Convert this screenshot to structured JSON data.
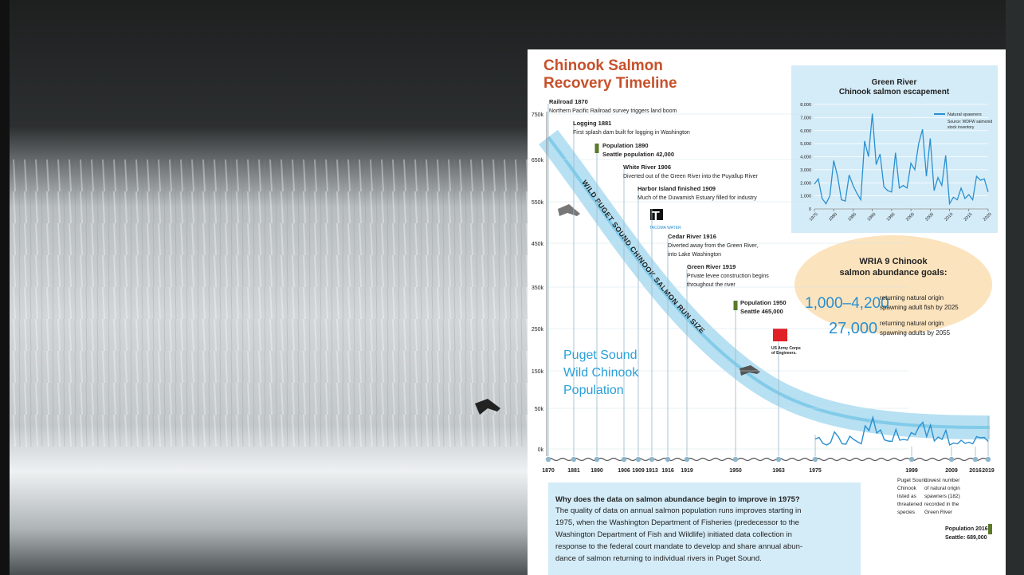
{
  "title_lines": [
    "Chinook Salmon",
    "Recovery Timeline"
  ],
  "run_axis": [
    "750k",
    "650k",
    "550k",
    "450k",
    "350k",
    "250k",
    "150k",
    "50k",
    "0k"
  ],
  "events": [
    {
      "lines": [
        "Railroad 1870",
        "Northern Pacific Railroad survey triggers land boom"
      ]
    },
    {
      "lines": [
        "Logging 1881",
        "First splash dam built for logging in Washington"
      ]
    },
    {
      "lines": [
        "Population 1890",
        "Seattle population 42,000"
      ]
    },
    {
      "lines": [
        "White River 1906",
        "Diverted out of the Green River into the Puyallup River"
      ]
    },
    {
      "lines": [
        "Harbor Island finished 1909",
        "Much of the Duwamish Estuary filled for industry"
      ]
    },
    {
      "lines": [
        "Cedar River 1916",
        "Diverted away from the Green River,",
        "into Lake Washington"
      ]
    },
    {
      "lines": [
        "Green River 1919",
        "Private levee construction begins",
        "throughout the river"
      ]
    },
    {
      "lines": [
        "Population 1950",
        "Seattle 465,000"
      ]
    }
  ],
  "timeline_years": [
    "1870",
    "1881",
    "1890",
    "1906",
    "1909",
    "1913",
    "1916",
    "1919",
    "1950",
    "1963",
    "1975",
    "1999",
    "2009",
    "2016",
    "2019"
  ],
  "band_label": "WILD PUGET SOUND CHINOOK SALMON RUN SIZE",
  "population_label": [
    "Puget Sound",
    "Wild Chinook",
    "Population"
  ],
  "logos": {
    "tacoma": "T",
    "tacoma_name": "TACOMA WATER",
    "corps": [
      "US Army Corps",
      "of Engineers."
    ]
  },
  "notes": {
    "y1999": [
      "Puget Sound",
      "Chinook",
      "listed as",
      "threatened",
      "species"
    ],
    "y2009": [
      "Lowest number",
      "of natural origin",
      "spawners (182)",
      "recorded in the",
      "Green River"
    ],
    "y2016": [
      "Population 2016",
      "Seattle: 689,000"
    ]
  },
  "goals": {
    "heading": [
      "WRIA 9 Chinook",
      "salmon abundance goals:"
    ],
    "items": [
      {
        "number": "1,000–4,200",
        "lines": [
          "returning natural origin",
          "spawning adult fish by 2025"
        ]
      },
      {
        "number": "27,000",
        "lines": [
          "returning natural origin",
          "spawning adults by 2055"
        ]
      }
    ]
  },
  "faq": {
    "question": "Why does the data on salmon abundance begin to improve in 1975?",
    "lines": [
      "The quality of data on annual salmon population runs improves starting in",
      "1975, when the Washington Department of Fisheries (predecessor to the",
      "Washington Department of Fish and Wildlife) initiated data collection in",
      "response to the federal court mandate to develop and share annual abun-",
      "dance of salmon returning to individual rivers in Puget Sound."
    ]
  },
  "chart_data": {
    "type": "line",
    "title_lines": [
      "Green River",
      "Chinook salmon escapement"
    ],
    "legend_note": [
      "Source: WDFW salmonid",
      "stock inventory"
    ],
    "x": [
      1975,
      1976,
      1977,
      1978,
      1979,
      1980,
      1981,
      1982,
      1983,
      1984,
      1985,
      1986,
      1987,
      1988,
      1989,
      1990,
      1991,
      1992,
      1993,
      1994,
      1995,
      1996,
      1997,
      1998,
      1999,
      2000,
      2001,
      2002,
      2003,
      2004,
      2005,
      2006,
      2007,
      2008,
      2009,
      2010,
      2011,
      2012,
      2013,
      2014,
      2015,
      2016,
      2017,
      2018,
      2019,
      2020
    ],
    "series": [
      {
        "name": "Natural spawners",
        "color": "#2a8fd0",
        "values": [
          1900,
          2300,
          800,
          400,
          1000,
          3700,
          2500,
          700,
          600,
          2600,
          1800,
          1200,
          700,
          5200,
          4000,
          7300,
          3400,
          4200,
          1700,
          1400,
          1300,
          4300,
          1600,
          1800,
          1600,
          3500,
          3000,
          5000,
          6100,
          2500,
          5400,
          1400,
          2400,
          1800,
          4100,
          400,
          900,
          700,
          1600,
          800,
          1100,
          700,
          2500,
          2200,
          2300,
          1300
        ]
      }
    ],
    "xlim": [
      1975,
      2020
    ],
    "xticks": [
      1975,
      1980,
      1985,
      1990,
      1995,
      2000,
      2005,
      2010,
      2015,
      2020
    ],
    "ylim": [
      0,
      8000
    ],
    "yticks": [
      0,
      {
        "value": 1000,
        "label": "1,000"
      },
      {
        "value": 2000,
        "label": "2,000"
      },
      {
        "value": 3000,
        "label": "3,000"
      },
      {
        "value": 4000,
        "label": "4,000"
      },
      {
        "value": 5000,
        "label": "5,000"
      },
      {
        "value": 6000,
        "label": "6,000"
      },
      {
        "value": 7000,
        "label": "7,000"
      },
      {
        "value": 8000,
        "label": "8,000"
      }
    ],
    "grid": true,
    "legend": "upper right"
  }
}
